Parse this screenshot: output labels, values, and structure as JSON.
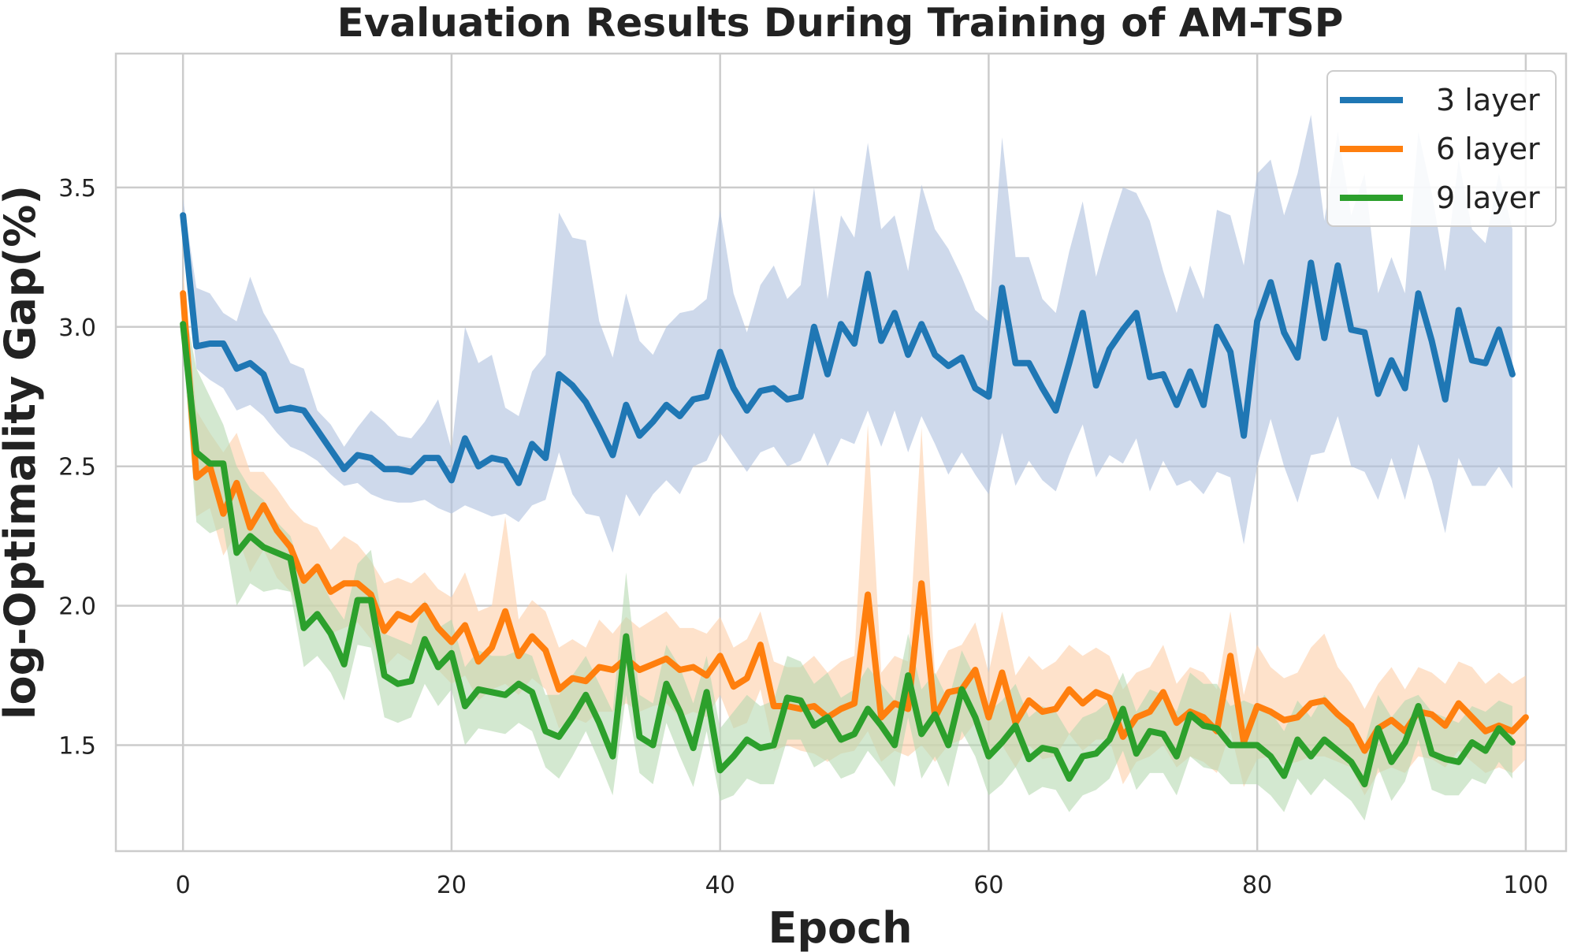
{
  "chart_data": {
    "type": "line",
    "title": "Evaluation Results During Training of AM-TSP",
    "xlabel": "Epoch",
    "ylabel": "log-Optimality Gap(%)",
    "xlim": [
      -5,
      103
    ],
    "ylim": [
      1.12,
      3.98
    ],
    "xticks": [
      0,
      20,
      40,
      60,
      80,
      100
    ],
    "yticks": [
      1.5,
      2.0,
      2.5,
      3.0,
      3.5
    ],
    "xtick_labels": [
      "0",
      "20",
      "40",
      "60",
      "80",
      "100"
    ],
    "ytick_labels": [
      "1.5",
      "2.0",
      "2.5",
      "3.0",
      "3.5"
    ],
    "grid": true,
    "legend_position": "top-right",
    "band": "shaded range around each mean",
    "x_start": 0,
    "series": [
      {
        "name": "3 layer",
        "color": "#1f77b4",
        "band_color": "#aec0dd",
        "values": [
          3.4,
          2.93,
          2.94,
          2.94,
          2.85,
          2.87,
          2.83,
          2.7,
          2.71,
          2.7,
          2.63,
          2.56,
          2.49,
          2.54,
          2.53,
          2.49,
          2.49,
          2.48,
          2.53,
          2.53,
          2.45,
          2.6,
          2.5,
          2.53,
          2.52,
          2.44,
          2.58,
          2.53,
          2.83,
          2.79,
          2.73,
          2.64,
          2.54,
          2.72,
          2.61,
          2.66,
          2.72,
          2.68,
          2.74,
          2.75,
          2.91,
          2.78,
          2.7,
          2.77,
          2.78,
          2.74,
          2.75,
          3.0,
          2.83,
          3.01,
          2.94,
          3.19,
          2.95,
          3.05,
          2.9,
          3.01,
          2.9,
          2.86,
          2.89,
          2.78,
          2.75,
          3.14,
          2.87,
          2.87,
          2.78,
          2.7,
          2.87,
          3.05,
          2.79,
          2.92,
          2.99,
          3.05,
          2.82,
          2.83,
          2.72,
          2.84,
          2.72,
          3.0,
          2.91,
          2.61,
          3.02,
          3.16,
          2.98,
          2.89,
          3.23,
          2.96,
          3.22,
          2.99,
          2.98,
          2.76,
          2.88,
          2.78,
          3.12,
          2.95,
          2.74,
          3.06,
          2.88,
          2.87,
          2.99,
          2.83
        ],
        "upper": [
          3.46,
          3.14,
          3.12,
          3.05,
          3.02,
          3.18,
          3.05,
          2.97,
          2.87,
          2.85,
          2.7,
          2.65,
          2.57,
          2.64,
          2.7,
          2.66,
          2.61,
          2.6,
          2.66,
          2.74,
          2.56,
          3.0,
          2.87,
          2.9,
          2.71,
          2.68,
          2.84,
          2.9,
          3.41,
          3.32,
          3.31,
          3.02,
          2.89,
          3.12,
          2.95,
          2.9,
          3.0,
          3.05,
          3.06,
          3.1,
          3.42,
          3.12,
          2.98,
          3.15,
          3.22,
          3.1,
          3.15,
          3.5,
          3.1,
          3.4,
          3.32,
          3.66,
          3.35,
          3.4,
          3.2,
          3.51,
          3.35,
          3.28,
          3.18,
          3.06,
          3.02,
          3.68,
          3.25,
          3.25,
          3.1,
          3.05,
          3.27,
          3.45,
          3.18,
          3.35,
          3.5,
          3.48,
          3.38,
          3.2,
          3.05,
          3.22,
          3.1,
          3.42,
          3.4,
          3.22,
          3.55,
          3.6,
          3.4,
          3.55,
          3.76,
          3.38,
          3.7,
          3.4,
          3.55,
          3.12,
          3.25,
          3.12,
          3.7,
          3.48,
          3.2,
          3.6,
          3.35,
          3.3,
          3.55,
          3.35
        ],
        "lower": [
          3.3,
          2.85,
          2.81,
          2.78,
          2.7,
          2.72,
          2.68,
          2.62,
          2.57,
          2.55,
          2.52,
          2.47,
          2.43,
          2.44,
          2.4,
          2.38,
          2.37,
          2.37,
          2.38,
          2.35,
          2.33,
          2.36,
          2.34,
          2.32,
          2.33,
          2.3,
          2.36,
          2.38,
          2.55,
          2.4,
          2.33,
          2.32,
          2.19,
          2.4,
          2.32,
          2.4,
          2.45,
          2.4,
          2.5,
          2.52,
          2.62,
          2.55,
          2.48,
          2.55,
          2.57,
          2.5,
          2.52,
          2.62,
          2.5,
          2.6,
          2.58,
          2.7,
          2.57,
          2.7,
          2.55,
          2.68,
          2.58,
          2.47,
          2.55,
          2.47,
          2.4,
          2.62,
          2.43,
          2.52,
          2.45,
          2.41,
          2.54,
          2.65,
          2.46,
          2.54,
          2.51,
          2.6,
          2.41,
          2.52,
          2.43,
          2.45,
          2.4,
          2.48,
          2.46,
          2.22,
          2.5,
          2.67,
          2.5,
          2.37,
          2.54,
          2.55,
          2.68,
          2.5,
          2.48,
          2.38,
          2.53,
          2.38,
          2.58,
          2.45,
          2.26,
          2.53,
          2.43,
          2.43,
          2.5,
          2.42
        ]
      },
      {
        "name": "6 layer",
        "color": "#ff7f0e",
        "band_color": "#fdcfa9",
        "values": [
          3.12,
          2.46,
          2.5,
          2.33,
          2.44,
          2.28,
          2.36,
          2.27,
          2.21,
          2.09,
          2.14,
          2.05,
          2.08,
          2.08,
          2.04,
          1.91,
          1.97,
          1.95,
          2.0,
          1.92,
          1.87,
          1.93,
          1.8,
          1.85,
          1.98,
          1.82,
          1.89,
          1.84,
          1.7,
          1.74,
          1.73,
          1.78,
          1.77,
          1.81,
          1.77,
          1.79,
          1.81,
          1.77,
          1.78,
          1.75,
          1.82,
          1.71,
          1.74,
          1.86,
          1.64,
          1.64,
          1.63,
          1.64,
          1.6,
          1.63,
          1.65,
          2.04,
          1.6,
          1.65,
          1.63,
          2.08,
          1.6,
          1.69,
          1.7,
          1.77,
          1.6,
          1.76,
          1.58,
          1.66,
          1.62,
          1.63,
          1.7,
          1.65,
          1.69,
          1.67,
          1.53,
          1.6,
          1.62,
          1.69,
          1.58,
          1.62,
          1.6,
          1.55,
          1.82,
          1.51,
          1.64,
          1.62,
          1.59,
          1.6,
          1.65,
          1.66,
          1.61,
          1.57,
          1.48,
          1.56,
          1.59,
          1.55,
          1.62,
          1.61,
          1.57,
          1.65,
          1.6,
          1.55,
          1.57,
          1.55,
          1.6
        ],
        "upper": [
          3.2,
          2.7,
          2.62,
          2.55,
          2.62,
          2.48,
          2.48,
          2.42,
          2.35,
          2.3,
          2.28,
          2.2,
          2.25,
          2.22,
          2.16,
          2.08,
          2.1,
          2.08,
          2.12,
          2.06,
          2.03,
          2.12,
          1.98,
          2.0,
          2.32,
          1.95,
          2.02,
          1.98,
          1.85,
          1.88,
          1.85,
          1.95,
          1.9,
          1.96,
          1.92,
          1.95,
          1.98,
          1.92,
          1.92,
          1.9,
          1.96,
          1.85,
          1.88,
          1.98,
          1.8,
          1.78,
          1.78,
          1.82,
          1.76,
          1.8,
          1.82,
          2.65,
          1.76,
          1.82,
          1.8,
          2.64,
          1.75,
          1.84,
          1.86,
          1.94,
          1.76,
          1.98,
          1.75,
          1.82,
          1.77,
          1.8,
          1.86,
          1.82,
          1.85,
          1.82,
          1.7,
          1.76,
          1.78,
          1.86,
          1.72,
          1.78,
          1.76,
          1.7,
          1.98,
          1.68,
          1.86,
          1.78,
          1.74,
          1.76,
          1.85,
          1.9,
          1.78,
          1.72,
          1.63,
          1.72,
          1.78,
          1.7,
          1.78,
          1.76,
          1.72,
          1.8,
          1.78,
          1.72,
          1.76,
          1.72,
          1.75
        ],
        "lower": [
          3.04,
          2.32,
          2.35,
          2.18,
          2.26,
          2.12,
          2.2,
          2.1,
          2.05,
          1.95,
          1.98,
          1.9,
          1.92,
          1.94,
          1.88,
          1.78,
          1.83,
          1.8,
          1.85,
          1.77,
          1.72,
          1.75,
          1.66,
          1.7,
          1.72,
          1.68,
          1.74,
          1.7,
          1.56,
          1.6,
          1.58,
          1.62,
          1.62,
          1.65,
          1.62,
          1.64,
          1.65,
          1.6,
          1.62,
          1.6,
          1.68,
          1.56,
          1.58,
          1.7,
          1.48,
          1.5,
          1.48,
          1.47,
          1.44,
          1.47,
          1.48,
          1.55,
          1.44,
          1.48,
          1.46,
          1.5,
          1.44,
          1.5,
          1.52,
          1.58,
          1.44,
          1.5,
          1.42,
          1.5,
          1.45,
          1.46,
          1.54,
          1.48,
          1.52,
          1.52,
          1.36,
          1.44,
          1.46,
          1.5,
          1.42,
          1.46,
          1.44,
          1.4,
          1.55,
          1.35,
          1.45,
          1.46,
          1.43,
          1.44,
          1.46,
          1.46,
          1.44,
          1.42,
          1.32,
          1.4,
          1.42,
          1.4,
          1.46,
          1.45,
          1.42,
          1.48,
          1.44,
          1.4,
          1.42,
          1.4,
          1.45
        ]
      },
      {
        "name": "9 layer",
        "color": "#2ca02c",
        "band_color": "#b6d8b0",
        "values": [
          3.01,
          2.55,
          2.51,
          2.51,
          2.19,
          2.25,
          2.21,
          2.19,
          2.17,
          1.92,
          1.97,
          1.9,
          1.79,
          2.02,
          2.02,
          1.75,
          1.72,
          1.73,
          1.88,
          1.78,
          1.83,
          1.64,
          1.7,
          1.69,
          1.68,
          1.72,
          1.69,
          1.55,
          1.53,
          1.6,
          1.68,
          1.58,
          1.46,
          1.89,
          1.53,
          1.5,
          1.72,
          1.62,
          1.49,
          1.69,
          1.41,
          1.46,
          1.52,
          1.49,
          1.5,
          1.67,
          1.66,
          1.57,
          1.6,
          1.52,
          1.54,
          1.63,
          1.57,
          1.5,
          1.75,
          1.54,
          1.61,
          1.5,
          1.7,
          1.6,
          1.46,
          1.51,
          1.57,
          1.45,
          1.49,
          1.48,
          1.38,
          1.46,
          1.47,
          1.52,
          1.63,
          1.47,
          1.55,
          1.54,
          1.46,
          1.61,
          1.57,
          1.56,
          1.5,
          1.5,
          1.5,
          1.46,
          1.39,
          1.52,
          1.46,
          1.52,
          1.48,
          1.44,
          1.36,
          1.56,
          1.44,
          1.51,
          1.64,
          1.47,
          1.45,
          1.44,
          1.51,
          1.48,
          1.56,
          1.51
        ],
        "upper": [
          3.1,
          2.85,
          2.75,
          2.65,
          2.5,
          2.42,
          2.38,
          2.3,
          2.25,
          2.1,
          2.12,
          2.02,
          1.95,
          2.15,
          2.2,
          1.9,
          1.88,
          1.86,
          2.02,
          1.92,
          1.95,
          1.78,
          1.84,
          1.82,
          1.82,
          1.84,
          1.82,
          1.68,
          1.68,
          1.75,
          1.82,
          1.72,
          1.62,
          2.12,
          1.68,
          1.65,
          1.86,
          1.78,
          1.65,
          1.82,
          1.56,
          1.62,
          1.68,
          1.64,
          1.66,
          1.82,
          1.8,
          1.72,
          1.76,
          1.67,
          1.7,
          1.78,
          1.72,
          1.66,
          1.9,
          1.7,
          1.76,
          1.66,
          1.84,
          1.74,
          1.62,
          1.66,
          1.72,
          1.6,
          1.64,
          1.62,
          1.54,
          1.6,
          1.62,
          1.66,
          1.76,
          1.62,
          1.7,
          1.68,
          1.62,
          1.76,
          1.72,
          1.72,
          1.64,
          1.66,
          1.64,
          1.62,
          1.55,
          1.66,
          1.6,
          1.68,
          1.62,
          1.58,
          1.5,
          1.68,
          1.6,
          1.66,
          1.68,
          1.62,
          1.6,
          1.58,
          1.64,
          1.62,
          1.66,
          1.64
        ],
        "lower": [
          2.92,
          2.3,
          2.26,
          2.28,
          2.0,
          2.08,
          2.05,
          2.06,
          2.05,
          1.78,
          1.82,
          1.76,
          1.66,
          1.86,
          1.85,
          1.6,
          1.58,
          1.6,
          1.72,
          1.64,
          1.7,
          1.5,
          1.56,
          1.55,
          1.54,
          1.58,
          1.55,
          1.42,
          1.38,
          1.46,
          1.55,
          1.44,
          1.32,
          1.68,
          1.4,
          1.36,
          1.58,
          1.46,
          1.35,
          1.55,
          1.3,
          1.32,
          1.38,
          1.36,
          1.36,
          1.52,
          1.52,
          1.42,
          1.45,
          1.38,
          1.4,
          1.48,
          1.42,
          1.35,
          1.6,
          1.38,
          1.46,
          1.35,
          1.55,
          1.46,
          1.32,
          1.36,
          1.42,
          1.32,
          1.35,
          1.34,
          1.26,
          1.32,
          1.34,
          1.38,
          1.48,
          1.34,
          1.4,
          1.4,
          1.32,
          1.46,
          1.42,
          1.41,
          1.36,
          1.36,
          1.36,
          1.32,
          1.26,
          1.38,
          1.32,
          1.38,
          1.34,
          1.3,
          1.23,
          1.42,
          1.3,
          1.37,
          1.52,
          1.34,
          1.32,
          1.32,
          1.38,
          1.36,
          1.44,
          1.38
        ]
      }
    ]
  }
}
